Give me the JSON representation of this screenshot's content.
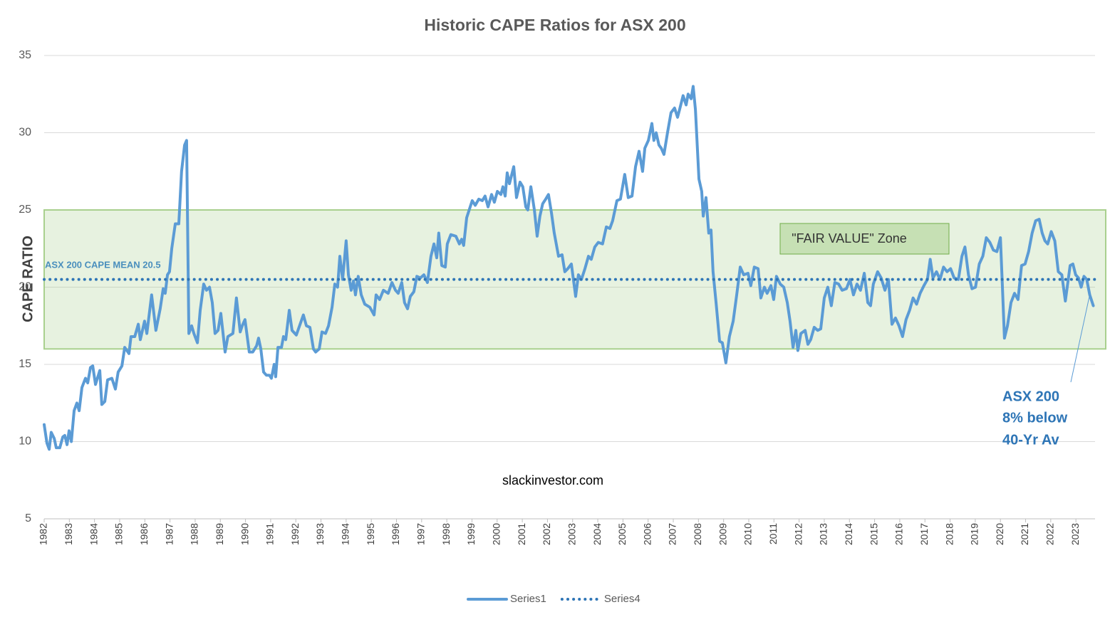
{
  "chart_data": {
    "type": "line",
    "title": "Historic CAPE Ratios for ASX 200",
    "y_label": "CAPE RATIO",
    "xlim": [
      1982,
      2023.76
    ],
    "xticks": [
      1982,
      1983,
      1984,
      1985,
      1986,
      1987,
      1988,
      1989,
      1990,
      1991,
      1992,
      1993,
      1994,
      1995,
      1996,
      1997,
      1998,
      1999,
      2000,
      2001,
      2002,
      2003,
      2004,
      2005,
      2006,
      2007,
      2008,
      2009,
      2010,
      2011,
      2012,
      2013,
      2014,
      2015,
      2016,
      2017,
      2018,
      2019,
      2020,
      2021,
      2022,
      2023
    ],
    "ylim": [
      5,
      35
    ],
    "yticks": [
      5,
      10,
      15,
      20,
      25,
      30,
      35
    ],
    "grid": true,
    "legend": "bottom",
    "series": [
      {
        "name": "Series1",
        "color": "#5b9bd5",
        "line_style": "solid",
        "x": [
          1982.0,
          1982.11,
          1982.2,
          1982.28,
          1982.4,
          1982.48,
          1982.62,
          1982.74,
          1982.82,
          1982.91,
          1982.99,
          1983.08,
          1983.19,
          1983.3,
          1983.39,
          1983.5,
          1983.64,
          1983.73,
          1983.84,
          1983.93,
          1984.04,
          1984.21,
          1984.29,
          1984.41,
          1984.52,
          1984.69,
          1984.83,
          1984.94,
          1985.09,
          1985.2,
          1985.37,
          1985.45,
          1985.6,
          1985.74,
          1985.82,
          1985.99,
          1986.08,
          1986.27,
          1986.44,
          1986.61,
          1986.73,
          1986.81,
          1986.9,
          1986.98,
          1987.07,
          1987.21,
          1987.35,
          1987.46,
          1987.58,
          1987.66,
          1987.75,
          1987.86,
          1987.95,
          1988.09,
          1988.2,
          1988.34,
          1988.45,
          1988.57,
          1988.68,
          1988.79,
          1988.91,
          1989.02,
          1989.19,
          1989.3,
          1989.5,
          1989.64,
          1989.79,
          1989.87,
          1989.98,
          1990.15,
          1990.29,
          1990.44,
          1990.52,
          1990.61,
          1990.72,
          1990.83,
          1990.95,
          1991.03,
          1991.14,
          1991.2,
          1991.29,
          1991.43,
          1991.51,
          1991.6,
          1991.74,
          1991.85,
          1992.02,
          1992.3,
          1992.42,
          1992.56,
          1992.7,
          1992.79,
          1992.93,
          1993.04,
          1993.18,
          1993.3,
          1993.44,
          1993.55,
          1993.66,
          1993.75,
          1993.86,
          1994.0,
          1994.09,
          1994.2,
          1994.29,
          1994.37,
          1994.48,
          1994.6,
          1994.74,
          1994.94,
          1995.11,
          1995.19,
          1995.33,
          1995.48,
          1995.67,
          1995.82,
          1995.96,
          1996.07,
          1996.21,
          1996.32,
          1996.44,
          1996.55,
          1996.69,
          1996.81,
          1996.95,
          1997.09,
          1997.23,
          1997.37,
          1997.49,
          1997.6,
          1997.68,
          1997.8,
          1997.94,
          1998.02,
          1998.16,
          1998.36,
          1998.5,
          1998.59,
          1998.67,
          1998.79,
          1998.93,
          1999.01,
          1999.13,
          1999.27,
          1999.41,
          1999.52,
          1999.64,
          1999.78,
          1999.89,
          2000.01,
          2000.15,
          2000.23,
          2000.32,
          2000.4,
          2000.49,
          2000.66,
          2000.77,
          2000.91,
          2001.02,
          2001.14,
          2001.22,
          2001.34,
          2001.48,
          2001.59,
          2001.7,
          2001.81,
          2001.93,
          2002.04,
          2002.16,
          2002.27,
          2002.44,
          2002.58,
          2002.69,
          2002.81,
          2002.95,
          2003.12,
          2003.23,
          2003.35,
          2003.49,
          2003.63,
          2003.74,
          2003.88,
          2004.02,
          2004.19,
          2004.34,
          2004.48,
          2004.59,
          2004.76,
          2004.9,
          2005.07,
          2005.21,
          2005.36,
          2005.5,
          2005.64,
          2005.78,
          2005.87,
          2006.01,
          2006.15,
          2006.23,
          2006.32,
          2006.43,
          2006.52,
          2006.63,
          2006.77,
          2006.91,
          2007.05,
          2007.17,
          2007.25,
          2007.39,
          2007.51,
          2007.59,
          2007.71,
          2007.79,
          2007.88,
          2008.02,
          2008.13,
          2008.19,
          2008.3,
          2008.41,
          2008.5,
          2008.58,
          2008.7,
          2008.84,
          2008.95,
          2009.09,
          2009.23,
          2009.38,
          2009.52,
          2009.66,
          2009.8,
          2009.97,
          2010.08,
          2010.22,
          2010.37,
          2010.48,
          2010.62,
          2010.73,
          2010.88,
          2010.99,
          2011.1,
          2011.25,
          2011.39,
          2011.53,
          2011.64,
          2011.76,
          2011.87,
          2011.95,
          2012.07,
          2012.24,
          2012.35,
          2012.46,
          2012.6,
          2012.74,
          2012.86,
          2013.0,
          2013.14,
          2013.28,
          2013.42,
          2013.57,
          2013.71,
          2013.88,
          2014.02,
          2014.16,
          2014.3,
          2014.44,
          2014.59,
          2014.73,
          2014.84,
          2014.95,
          2015.12,
          2015.26,
          2015.41,
          2015.55,
          2015.69,
          2015.83,
          2015.97,
          2016.11,
          2016.25,
          2016.39,
          2016.53,
          2016.67,
          2016.81,
          2016.96,
          2017.1,
          2017.21,
          2017.32,
          2017.46,
          2017.6,
          2017.74,
          2017.88,
          2018.02,
          2018.16,
          2018.33,
          2018.47,
          2018.59,
          2018.73,
          2018.87,
          2019.01,
          2019.16,
          2019.3,
          2019.44,
          2019.58,
          2019.72,
          2019.86,
          2020.0,
          2020.08,
          2020.16,
          2020.28,
          2020.42,
          2020.56,
          2020.7,
          2020.84,
          2020.98,
          2021.12,
          2021.26,
          2021.4,
          2021.54,
          2021.66,
          2021.77,
          2021.88,
          2022.02,
          2022.16,
          2022.3,
          2022.44,
          2022.58,
          2022.77,
          2022.88,
          2022.99,
          2023.1,
          2023.21,
          2023.32,
          2023.43,
          2023.55,
          2023.69
        ],
        "values": [
          11.1,
          9.9,
          9.5,
          10.6,
          10.2,
          9.6,
          9.6,
          10.3,
          10.4,
          9.8,
          10.7,
          10.0,
          12.0,
          12.5,
          12.0,
          13.5,
          14.1,
          13.8,
          14.8,
          14.9,
          13.7,
          14.6,
          12.4,
          12.6,
          14.0,
          14.1,
          13.4,
          14.5,
          14.9,
          16.1,
          15.7,
          16.8,
          16.8,
          17.6,
          16.6,
          17.8,
          17.0,
          19.5,
          17.2,
          18.6,
          19.9,
          19.6,
          20.8,
          21.0,
          22.5,
          24.1,
          24.1,
          27.5,
          29.2,
          29.5,
          17.0,
          17.5,
          17.0,
          16.4,
          18.5,
          20.2,
          19.8,
          20.0,
          19.0,
          17.0,
          17.2,
          18.3,
          15.8,
          16.8,
          17.0,
          19.3,
          17.1,
          17.5,
          17.9,
          15.8,
          15.8,
          16.2,
          16.7,
          16.0,
          14.5,
          14.3,
          14.3,
          14.1,
          15.0,
          14.2,
          16.1,
          16.1,
          16.8,
          16.6,
          18.5,
          17.2,
          16.9,
          18.2,
          17.5,
          17.4,
          16.0,
          15.8,
          16.0,
          17.1,
          17.0,
          17.5,
          18.7,
          20.2,
          20.0,
          22.0,
          20.5,
          23.0,
          20.8,
          19.8,
          20.4,
          19.5,
          20.7,
          19.5,
          18.9,
          18.7,
          18.2,
          19.5,
          19.2,
          19.8,
          19.6,
          20.3,
          19.8,
          19.6,
          20.3,
          19.0,
          18.6,
          19.4,
          19.7,
          20.7,
          20.6,
          20.8,
          20.3,
          22.0,
          22.8,
          21.9,
          23.5,
          21.4,
          21.3,
          22.8,
          23.4,
          23.3,
          22.8,
          23.1,
          22.7,
          24.5,
          25.2,
          25.6,
          25.3,
          25.7,
          25.6,
          25.9,
          25.2,
          26.0,
          25.5,
          26.2,
          26.0,
          26.5,
          25.9,
          27.4,
          26.7,
          27.8,
          25.8,
          26.8,
          26.5,
          25.2,
          25.0,
          26.5,
          25.0,
          23.3,
          24.6,
          25.4,
          25.7,
          26.0,
          24.8,
          23.5,
          22.0,
          22.1,
          21.0,
          21.2,
          21.5,
          19.4,
          20.8,
          20.5,
          21.2,
          22.0,
          21.8,
          22.6,
          22.9,
          22.8,
          23.9,
          23.8,
          24.3,
          25.6,
          25.7,
          27.3,
          25.8,
          25.9,
          27.8,
          28.8,
          27.5,
          29.0,
          29.5,
          30.6,
          29.5,
          30.0,
          29.2,
          29.0,
          28.6,
          30.0,
          31.3,
          31.6,
          31.0,
          31.5,
          32.4,
          31.8,
          32.5,
          32.2,
          33.0,
          31.5,
          27.0,
          26.2,
          24.6,
          25.8,
          23.5,
          23.7,
          21.0,
          19.0,
          16.5,
          16.4,
          15.1,
          16.8,
          17.8,
          19.5,
          21.3,
          20.8,
          20.9,
          20.1,
          21.3,
          21.2,
          19.3,
          20.0,
          19.6,
          20.1,
          19.2,
          20.7,
          20.2,
          20.0,
          19.0,
          17.8,
          16.1,
          17.2,
          15.9,
          17.0,
          17.2,
          16.3,
          16.6,
          17.4,
          17.2,
          17.3,
          19.3,
          20.0,
          18.8,
          20.3,
          20.2,
          19.8,
          19.9,
          20.5,
          19.5,
          20.2,
          19.8,
          20.9,
          19.0,
          18.8,
          20.2,
          21.0,
          20.6,
          19.8,
          20.5,
          17.6,
          18.0,
          17.5,
          16.8,
          17.9,
          18.5,
          19.3,
          18.9,
          19.6,
          20.1,
          20.5,
          21.8,
          20.6,
          21.0,
          20.5,
          21.3,
          21.0,
          21.2,
          20.6,
          20.5,
          22.0,
          22.6,
          20.8,
          19.9,
          20.0,
          21.5,
          22.0,
          23.2,
          22.9,
          22.4,
          22.3,
          23.2,
          20.0,
          16.7,
          17.5,
          19.0,
          19.6,
          19.2,
          21.4,
          21.5,
          22.3,
          23.5,
          24.3,
          24.4,
          23.5,
          23.0,
          22.8,
          23.6,
          23.0,
          21.0,
          20.8,
          19.1,
          21.4,
          21.5,
          20.8,
          20.6,
          20.0,
          20.7,
          20.5,
          19.5,
          18.8
        ]
      },
      {
        "name": "Series4",
        "color": "#2e75b6",
        "line_style": "dotted",
        "x": [
          1982,
          2023.76
        ],
        "values": [
          20.5,
          20.5
        ]
      }
    ],
    "zone": {
      "label": "\"FAIR VALUE\" Zone",
      "ymin": 16,
      "ymax": 25
    },
    "mean_label": "ASX 200 CAPE MEAN 20.5",
    "watermark": "slackinvestor.com",
    "callout": [
      "ASX 200",
      "8% below",
      "40-Yr Av"
    ]
  }
}
